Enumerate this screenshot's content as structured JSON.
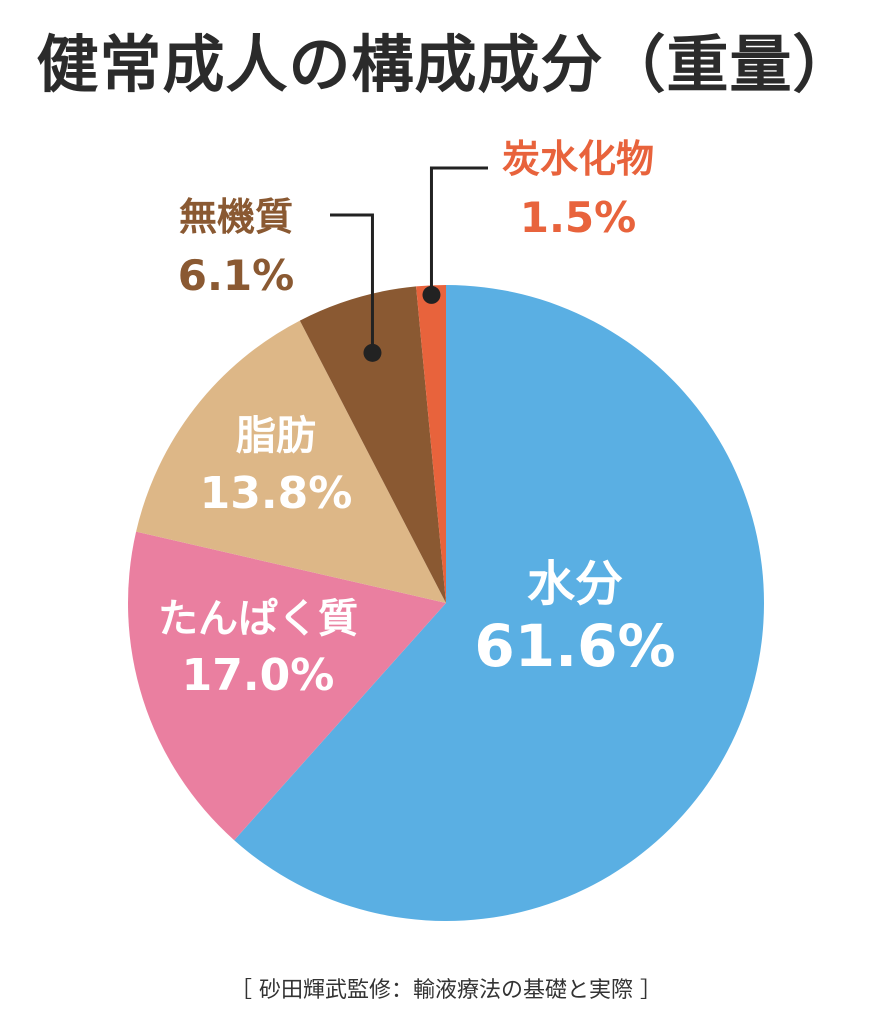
{
  "chart_data": {
    "type": "pie",
    "title": "健常成人の構成成分（重量）",
    "source": "［ 砂田輝武監修：輸液療法の基礎と実際 ］",
    "slices": [
      {
        "label": "水分",
        "value": 61.6,
        "value_text": "61.6%",
        "color": "#5aafe3",
        "label_color": "#ffffff"
      },
      {
        "label": "たんぱく質",
        "value": 17.0,
        "value_text": "17.0%",
        "color": "#ea7fa0",
        "label_color": "#ffffff"
      },
      {
        "label": "脂肪",
        "value": 13.8,
        "value_text": "13.8%",
        "color": "#ddb787",
        "label_color": "#ffffff"
      },
      {
        "label": "無機質",
        "value": 6.1,
        "value_text": "6.1%",
        "color": "#8a5932",
        "label_color": "#8a5932"
      },
      {
        "label": "炭水化物",
        "value": 1.5,
        "value_text": "1.5%",
        "color": "#e8633c",
        "label_color": "#e8633c"
      }
    ]
  }
}
